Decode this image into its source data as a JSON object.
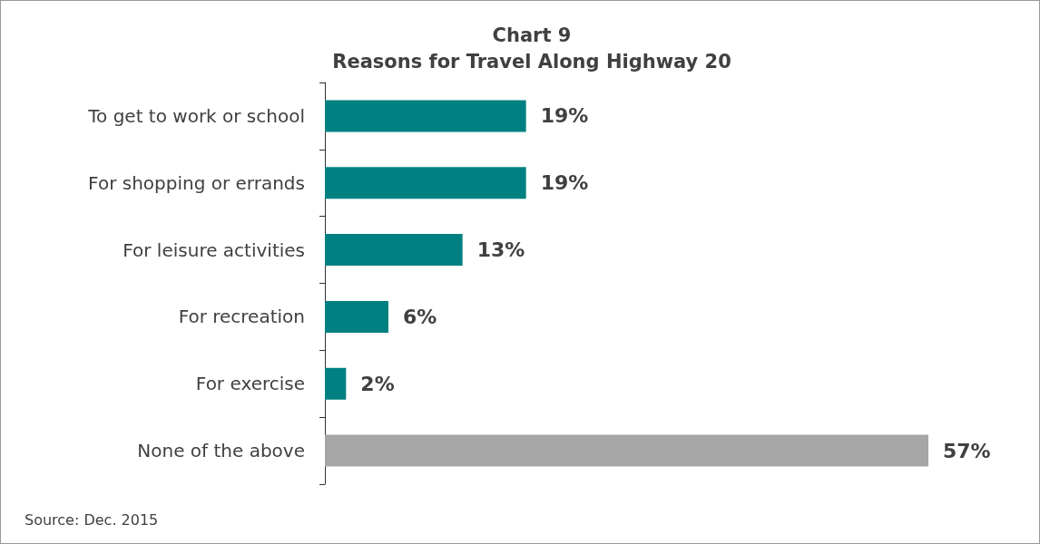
{
  "chart_data": {
    "type": "bar",
    "orientation": "horizontal",
    "title": "Chart 9\nReasons for Travel Along Highway 20",
    "categories": [
      "To get to work or school",
      "For shopping or errands",
      "For leisure activities",
      "For recreation",
      "For exercise",
      "None of the above"
    ],
    "values": [
      19,
      19,
      13,
      6,
      2,
      57
    ],
    "colors": [
      "#008080",
      "#008080",
      "#008080",
      "#008080",
      "#008080",
      "#a6a6a6"
    ],
    "value_labels": [
      "19%",
      "19%",
      "13%",
      "6%",
      "2%",
      "57%"
    ],
    "annotations": [
      "Source: Dec. 2015"
    ]
  }
}
